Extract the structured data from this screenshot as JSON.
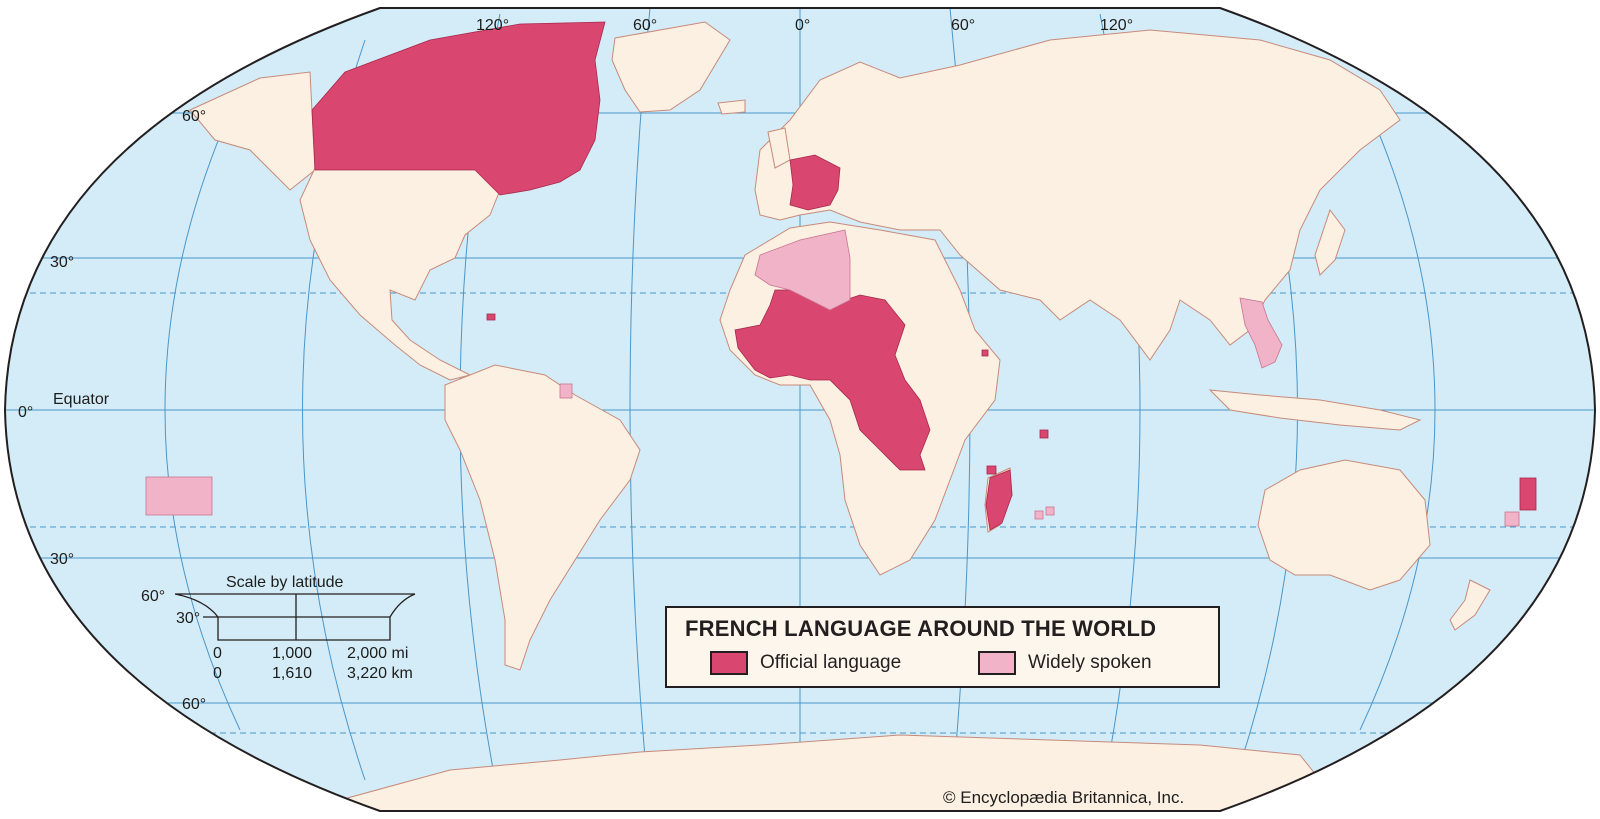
{
  "title": "FRENCH LANGUAGE AROUND THE WORLD",
  "legend": {
    "official": {
      "label": "Official language",
      "color": "#d9466f"
    },
    "widely": {
      "label": "Widely spoken",
      "color": "#f0b3c8"
    }
  },
  "colors": {
    "ocean": "#d4ecf7",
    "land": "#fbf0e2",
    "grid": "#4a96c9",
    "border": "#c88a7a"
  },
  "graticule": {
    "longitudes": [
      "120°",
      "60°",
      "0°",
      "60°",
      "120°"
    ],
    "latitudes": {
      "north60": "60°",
      "north30": "30°",
      "equator_value": "0°",
      "equator_name": "Equator",
      "south30": "30°",
      "south60": "60°"
    }
  },
  "scale": {
    "title": "Scale by latitude",
    "lat60": "60°",
    "lat30": "30°",
    "mi": [
      "0",
      "1,000",
      "2,000 mi"
    ],
    "km": [
      "0",
      "1,610",
      "3,220 km"
    ]
  },
  "credit": "© Encyclopædia Britannica, Inc."
}
